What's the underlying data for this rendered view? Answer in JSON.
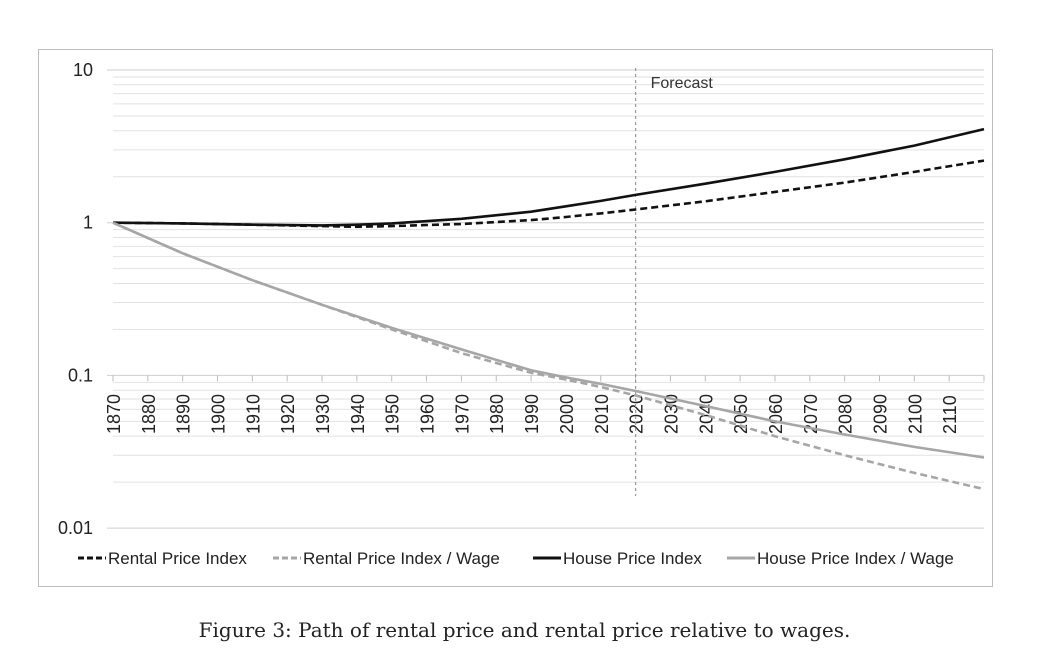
{
  "chart_data": {
    "type": "line",
    "scale": "log",
    "ylim": [
      0.01,
      10
    ],
    "y_ticks": [
      "10",
      "1",
      "0.1",
      "0.01"
    ],
    "x_tick_labels": [
      "1870",
      "1880",
      "1890",
      "1900",
      "1910",
      "1920",
      "1930",
      "1940",
      "1950",
      "1960",
      "1970",
      "1980",
      "1990",
      "2000",
      "2010",
      "2020",
      "2030",
      "2040",
      "2050",
      "2060",
      "2070",
      "2080",
      "2090",
      "2100",
      "2110"
    ],
    "xlim": [
      1870,
      2120
    ],
    "forecast_year": 2020,
    "annotation": "Forecast",
    "series": [
      {
        "name": "Rental Price Index",
        "style": "dashed",
        "color": "#111111",
        "x": [
          1870,
          1890,
          1910,
          1930,
          1940,
          1950,
          1970,
          1990,
          2000,
          2010,
          2020,
          2040,
          2060,
          2080,
          2100,
          2120
        ],
        "values": [
          1.0,
          0.99,
          0.97,
          0.95,
          0.94,
          0.95,
          0.98,
          1.04,
          1.09,
          1.15,
          1.22,
          1.38,
          1.59,
          1.83,
          2.15,
          2.55
        ]
      },
      {
        "name": "Rental Price Index / Wage",
        "style": "dashed",
        "color": "#a6a6a6",
        "x": [
          1870,
          1890,
          1910,
          1930,
          1950,
          1970,
          1990,
          2000,
          2010,
          2020,
          2040,
          2060,
          2080,
          2100,
          2120
        ],
        "values": [
          1.0,
          0.63,
          0.42,
          0.29,
          0.2,
          0.14,
          0.104,
          0.094,
          0.084,
          0.074,
          0.055,
          0.04,
          0.03,
          0.023,
          0.018
        ]
      },
      {
        "name": "House Price Index",
        "style": "solid",
        "color": "#111111",
        "x": [
          1870,
          1890,
          1910,
          1930,
          1940,
          1950,
          1970,
          1990,
          2000,
          2010,
          2020,
          2040,
          2060,
          2080,
          2100,
          2120
        ],
        "values": [
          1.0,
          0.99,
          0.97,
          0.96,
          0.97,
          0.99,
          1.06,
          1.18,
          1.28,
          1.39,
          1.52,
          1.8,
          2.15,
          2.6,
          3.2,
          4.1
        ]
      },
      {
        "name": "House Price Index / Wage",
        "style": "solid",
        "color": "#a6a6a6",
        "x": [
          1870,
          1890,
          1910,
          1930,
          1950,
          1970,
          1990,
          2000,
          2010,
          2020,
          2040,
          2060,
          2080,
          2100,
          2120
        ],
        "values": [
          1.0,
          0.63,
          0.42,
          0.29,
          0.205,
          0.148,
          0.108,
          0.097,
          0.088,
          0.079,
          0.063,
          0.05,
          0.041,
          0.034,
          0.029
        ]
      }
    ]
  },
  "legend": [
    {
      "label": "Rental Price Index",
      "style": "dashed",
      "color": "#111111"
    },
    {
      "label": "Rental Price Index / Wage",
      "style": "dashed",
      "color": "#a6a6a6"
    },
    {
      "label": "House Price Index",
      "style": "solid",
      "color": "#111111"
    },
    {
      "label": "House Price Index / Wage",
      "style": "solid",
      "color": "#a6a6a6"
    }
  ],
  "caption": "Figure 3: Path of rental price and rental price relative to wages."
}
